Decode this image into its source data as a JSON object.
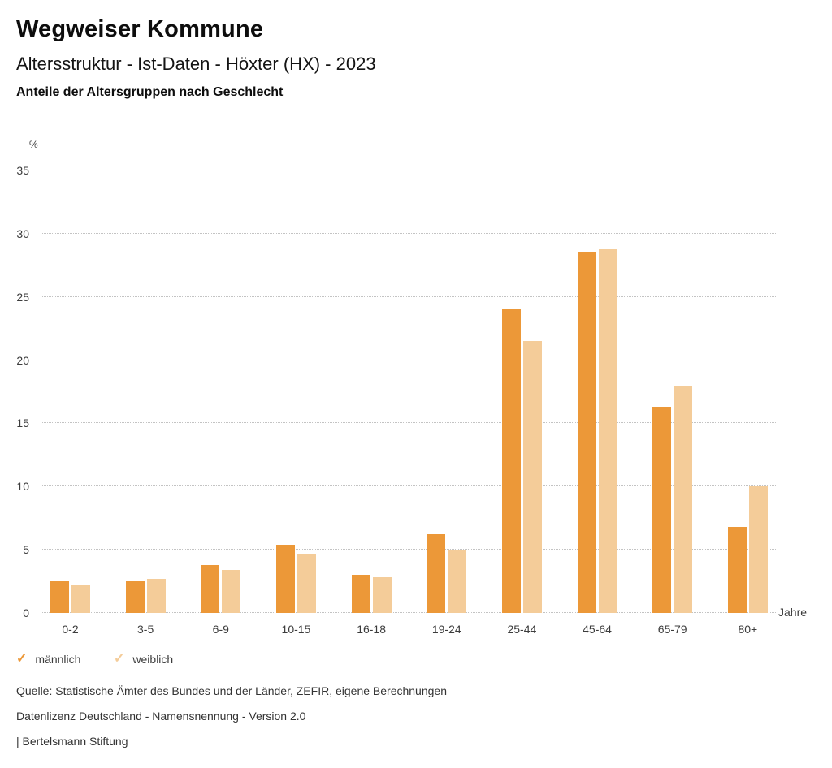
{
  "header": {
    "title": "Wegweiser Kommune",
    "subtitle": "Altersstruktur - Ist-Daten - Höxter (HX) - 2023",
    "caption": "Anteile der Altersgruppen nach Geschlecht"
  },
  "chart_data": {
    "type": "bar",
    "title": "Anteile der Altersgruppen nach Geschlecht",
    "categories": [
      "0-2",
      "3-5",
      "6-9",
      "10-15",
      "16-18",
      "19-24",
      "25-44",
      "45-64",
      "65-79",
      "80+"
    ],
    "series": [
      {
        "name": "männlich",
        "color": "#EC9838",
        "values": [
          2.5,
          2.5,
          3.8,
          5.4,
          3.0,
          6.2,
          24.0,
          28.6,
          16.3,
          6.8
        ]
      },
      {
        "name": "weiblich",
        "color": "#F4CC99",
        "values": [
          2.2,
          2.7,
          3.4,
          4.7,
          2.8,
          5.0,
          21.5,
          28.8,
          18.0,
          10.0
        ]
      }
    ],
    "xlabel": "Jahre",
    "ylabel": "%",
    "ylim": [
      0,
      35
    ],
    "ytick_interval": 5,
    "yticks": [
      0,
      5,
      10,
      15,
      20,
      25,
      30,
      35
    ],
    "grid": "horizontal-dotted",
    "legend_position": "bottom-left"
  },
  "legend": {
    "check_glyph": "✓",
    "items": [
      {
        "label": "männlich",
        "color": "#EC9838"
      },
      {
        "label": "weiblich",
        "color": "#F4CC99"
      }
    ]
  },
  "footer": {
    "source": "Quelle: Statistische Ämter des Bundes und der Länder, ZEFIR, eigene Berechnungen",
    "license": "Datenlizenz Deutschland - Namensnennung - Version 2.0",
    "attribution": "| Bertelsmann Stiftung"
  }
}
